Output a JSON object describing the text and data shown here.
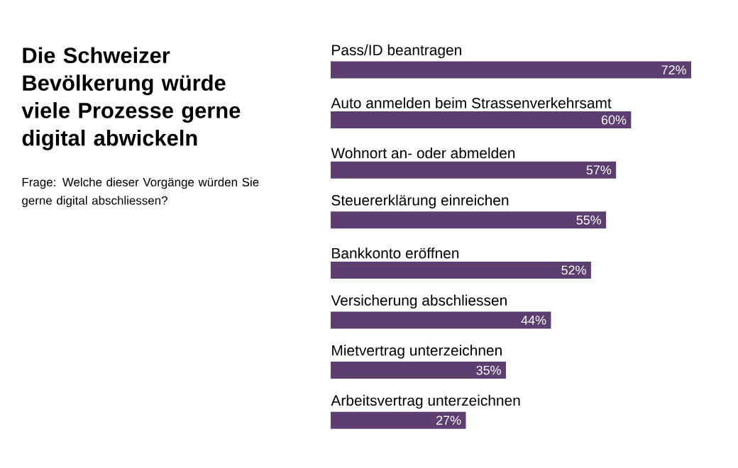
{
  "chart_data": {
    "type": "bar",
    "orientation": "horizontal",
    "title": "Die Schweizer Bevölkerung würde viele Prozesse gerne digital abwickeln",
    "subtitle": "Frage: Welche dieser Vorgänge würden Sie gerne digital abschliessen?",
    "categories": [
      "Pass/ID beantragen",
      "Auto anmelden beim Strassenverkehrsamt",
      "Wohnort an- oder abmelden",
      "Steuererklärung einreichen",
      "Bankkonto eröffnen",
      "Versicherung abschliessen",
      "Mietvertrag unterzeichnen",
      "Arbeitsvertrag unterzeichnen"
    ],
    "values": [
      72,
      60,
      57,
      55,
      52,
      44,
      35,
      27
    ],
    "value_labels": [
      "72%",
      "60%",
      "57%",
      "55%",
      "52%",
      "44%",
      "35%",
      "27%"
    ],
    "color": "#5c3f70"
  }
}
